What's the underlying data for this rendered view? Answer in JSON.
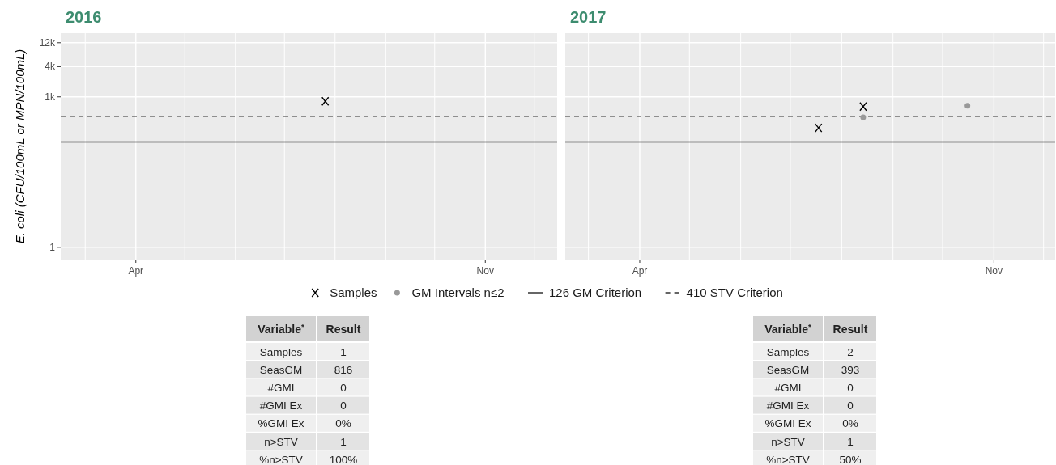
{
  "chart_data": [
    {
      "type": "scatter",
      "title": "2016",
      "ylabel": "E. coli (CFU/100mL or MPN/100mL)",
      "log": "y",
      "grid": true,
      "legend": "bottom",
      "xlim": [
        "2016-02-15",
        "2016-12-15"
      ],
      "xticks": [
        {
          "value": "2016-03-01",
          "label": null
        },
        {
          "value": "2016-04-01",
          "label": "Apr"
        },
        {
          "value": "2016-05-01",
          "label": null
        },
        {
          "value": "2016-06-01",
          "label": null
        },
        {
          "value": "2016-07-01",
          "label": null
        },
        {
          "value": "2016-08-01",
          "label": null
        },
        {
          "value": "2016-09-01",
          "label": null
        },
        {
          "value": "2016-10-01",
          "label": null
        },
        {
          "value": "2016-11-01",
          "label": "Nov"
        },
        {
          "value": "2016-12-01",
          "label": null
        }
      ],
      "ylim": [
        0.57,
        18600
      ],
      "yticks": [
        1,
        {
          "value": 1000,
          "label": "1k"
        },
        {
          "value": 4000,
          "label": "4k"
        },
        {
          "value": 12000,
          "label": "12k"
        }
      ],
      "series": [
        {
          "name": "Samples",
          "color": "#000000",
          "marker": "cross",
          "x": [
            "2016-07-26"
          ],
          "values": [
            816
          ]
        },
        {
          "name": "GM Intervals n≤2",
          "color": "#999999",
          "marker": "circle"
        }
      ],
      "ref_lines": [
        {
          "axis": "y",
          "value": 126,
          "label": "126 GM Criterion",
          "line_style": "solid",
          "color": "#333333"
        },
        {
          "axis": "y",
          "value": 410,
          "label": "410 STV Criterion",
          "line_style": "dashed",
          "color": "#333333"
        }
      ]
    },
    {
      "type": "scatter",
      "title": "2017",
      "log": "y",
      "grid": true,
      "tick_labels": "x",
      "xlim": [
        "2017-02-15",
        "2017-12-08"
      ],
      "xticks": [
        {
          "value": "2017-03-01",
          "label": null
        },
        {
          "value": "2017-04-01",
          "label": "Apr"
        },
        {
          "value": "2017-05-01",
          "label": null
        },
        {
          "value": "2017-06-01",
          "label": null
        },
        {
          "value": "2017-07-01",
          "label": null
        },
        {
          "value": "2017-08-01",
          "label": null
        },
        {
          "value": "2017-09-01",
          "label": null
        },
        {
          "value": "2017-10-01",
          "label": null
        },
        {
          "value": "2017-11-01",
          "label": "Nov"
        },
        {
          "value": "2017-12-01",
          "label": null
        }
      ],
      "ylim": [
        0.57,
        18600
      ],
      "yticks": [
        1,
        1000,
        4000,
        12000
      ],
      "series": [
        {
          "color": "#000000",
          "marker": "cross",
          "x": [
            "2017-07-18",
            "2017-08-14"
          ],
          "values": [
            241,
            640
          ]
        },
        {
          "color": "#999999",
          "marker": "circle",
          "x": [
            "2017-08-14",
            "2017-10-16"
          ],
          "values": [
            393,
            665
          ]
        }
      ],
      "ref_lines": [
        {
          "axis": "y",
          "value": 126,
          "line_style": "solid",
          "color": "#333333"
        },
        {
          "axis": "y",
          "value": 410,
          "line_style": "dashed",
          "color": "#333333"
        }
      ]
    },
    {
      "type": "other",
      "annotations": [
        "Variable$^{*}$",
        "Result",
        "Samples",
        "1",
        "SeasGM",
        "816",
        "#GMI",
        "0",
        "#GMI Ex",
        "0",
        "%GMI Ex",
        "0%",
        "n>STV",
        "1",
        "%n>STV",
        "100%"
      ]
    },
    {
      "type": "other",
      "annotations": [
        "Variable$^{*}$",
        "Result",
        "Samples",
        "2",
        "SeasGM",
        "393",
        "#GMI",
        "0",
        "#GMI Ex",
        "0",
        "%GMI Ex",
        "0%",
        "n>STV",
        "1",
        "%n>STV",
        "50%"
      ]
    }
  ]
}
